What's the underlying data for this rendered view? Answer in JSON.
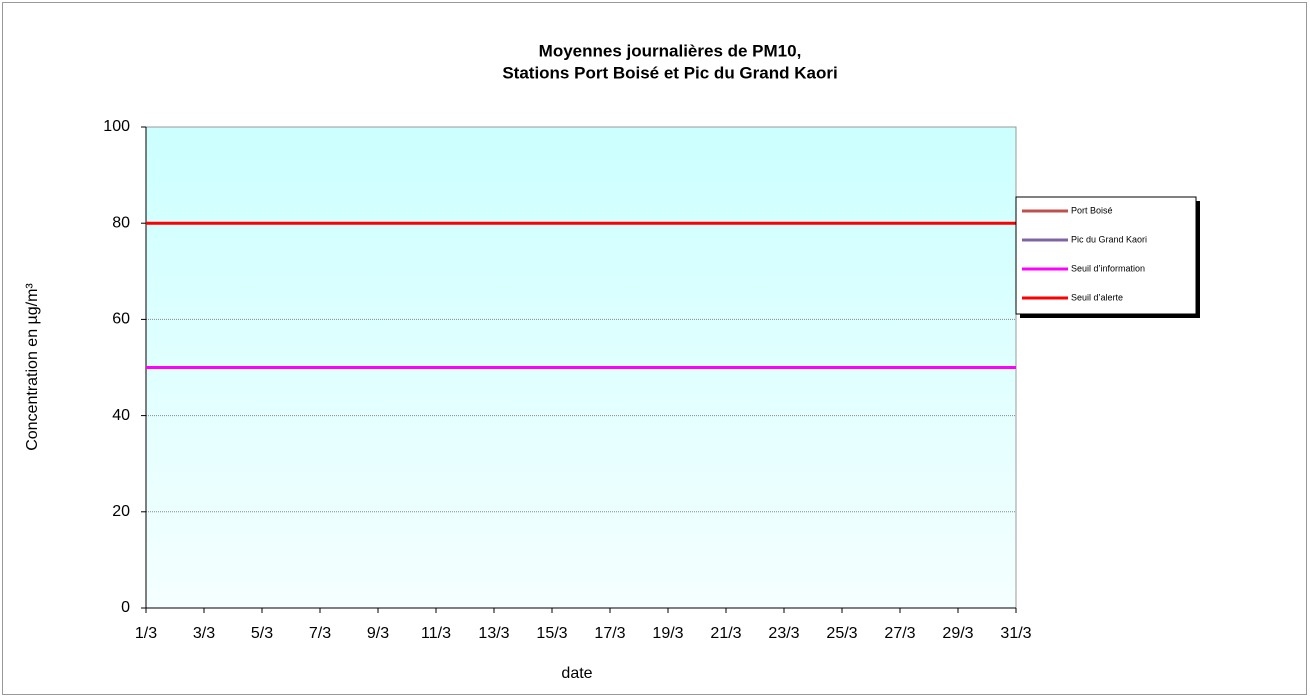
{
  "chart_data": {
    "type": "line",
    "title": [
      "Moyennes journalières de PM10,",
      "Stations Port Boisé et Pic du Grand Kaori"
    ],
    "x_label": "date",
    "y_label": "Concentration en µg/m³",
    "categories": [
      "1/3",
      "3/3",
      "5/3",
      "7/3",
      "9/3",
      "11/3",
      "13/3",
      "15/3",
      "17/3",
      "19/3",
      "21/3",
      "23/3",
      "25/3",
      "27/3",
      "29/3",
      "31/3"
    ],
    "series": [
      {
        "name": "Port Boisé",
        "color": "#c0504d",
        "values": [
          null,
          null,
          null,
          null,
          null,
          null,
          null,
          null,
          null,
          null,
          null,
          null,
          null,
          null,
          null,
          null
        ]
      },
      {
        "name": "Pic du Grand Kaori",
        "color": "#8064a2",
        "values": [
          null,
          null,
          null,
          null,
          null,
          null,
          null,
          null,
          null,
          null,
          null,
          null,
          null,
          null,
          null,
          null
        ]
      },
      {
        "name": "Seuil d’information",
        "color": "#ff00ff",
        "values": [
          50,
          50,
          50,
          50,
          50,
          50,
          50,
          50,
          50,
          50,
          50,
          50,
          50,
          50,
          50,
          50
        ]
      },
      {
        "name": "Seuil d’alerte",
        "color": "#ff0000",
        "values": [
          80,
          80,
          80,
          80,
          80,
          80,
          80,
          80,
          80,
          80,
          80,
          80,
          80,
          80,
          80,
          80
        ]
      }
    ],
    "ylim": [
      0,
      100
    ],
    "yticks": [
      0,
      20,
      40,
      60,
      80,
      100
    ],
    "grid": true,
    "legend": "right"
  }
}
